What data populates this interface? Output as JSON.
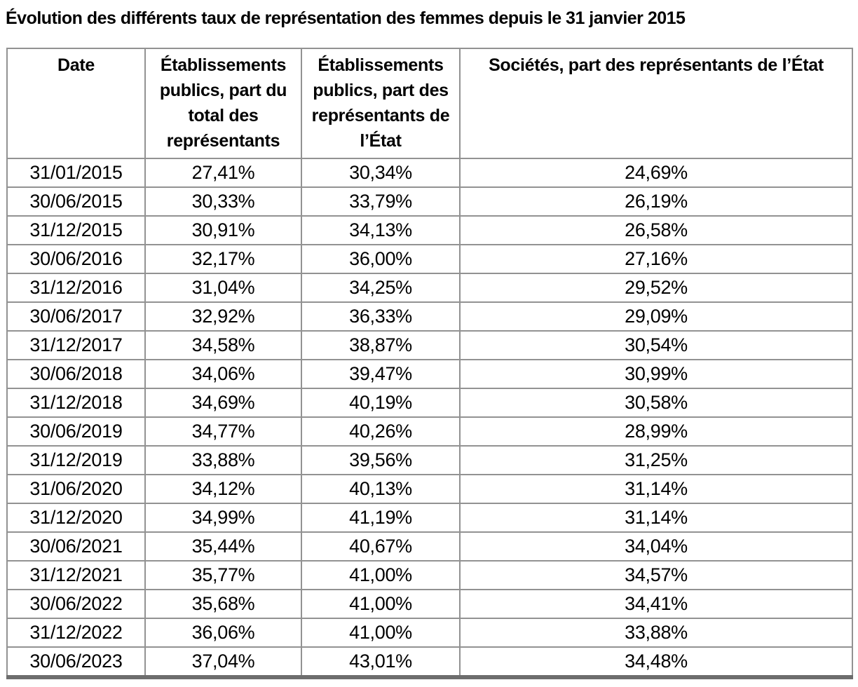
{
  "page": {
    "title": "Évolution des différents taux de représentation des femmes depuis le 31 janvier 2015"
  },
  "table": {
    "headers": [
      "Date",
      "Établissements\npublics, part du\ntotal des\nreprésentants",
      "Établissements\npublics, part des\nreprésentants de\nl’État",
      "Sociétés, part des représentants de l’État"
    ],
    "rows": [
      [
        "31/01/2015",
        "27,41%",
        "30,34%",
        "24,69%"
      ],
      [
        "30/06/2015",
        "30,33%",
        "33,79%",
        "26,19%"
      ],
      [
        "31/12/2015",
        "30,91%",
        "34,13%",
        "26,58%"
      ],
      [
        "30/06/2016",
        "32,17%",
        "36,00%",
        "27,16%"
      ],
      [
        "31/12/2016",
        "31,04%",
        "34,25%",
        "29,52%"
      ],
      [
        "30/06/2017",
        "32,92%",
        "36,33%",
        "29,09%"
      ],
      [
        "31/12/2017",
        "34,58%",
        "38,87%",
        "30,54%"
      ],
      [
        "30/06/2018",
        "34,06%",
        "39,47%",
        "30,99%"
      ],
      [
        "31/12/2018",
        "34,69%",
        "40,19%",
        "30,58%"
      ],
      [
        "30/06/2019",
        "34,77%",
        "40,26%",
        "28,99%"
      ],
      [
        "31/12/2019",
        "33,88%",
        "39,56%",
        "31,25%"
      ],
      [
        "31/06/2020",
        "34,12%",
        "40,13%",
        "31,14%"
      ],
      [
        "31/12/2020",
        "34,99%",
        "41,19%",
        "31,14%"
      ],
      [
        "30/06/2021",
        "35,44%",
        "40,67%",
        "34,04%"
      ],
      [
        "31/12/2021",
        "35,77%",
        "41,00%",
        "34,57%"
      ],
      [
        "30/06/2022",
        "35,68%",
        "41,00%",
        "34,41%"
      ],
      [
        "31/12/2022",
        "36,06%",
        "41,00%",
        "33,88%"
      ],
      [
        "30/06/2023",
        "37,04%",
        "43,01%",
        "34,48%"
      ]
    ]
  },
  "chart_data": {
    "type": "table",
    "title": "Évolution des différents taux de représentation des femmes depuis le 31 janvier 2015",
    "unit": "%",
    "categories": [
      "31/01/2015",
      "30/06/2015",
      "31/12/2015",
      "30/06/2016",
      "31/12/2016",
      "30/06/2017",
      "31/12/2017",
      "30/06/2018",
      "31/12/2018",
      "30/06/2019",
      "31/12/2019",
      "31/06/2020",
      "31/12/2020",
      "30/06/2021",
      "31/12/2021",
      "30/06/2022",
      "31/12/2022",
      "30/06/2023"
    ],
    "series": [
      {
        "name": "Établissements publics, part du total des représentants",
        "values": [
          27.41,
          30.33,
          30.91,
          32.17,
          31.04,
          32.92,
          34.58,
          34.06,
          34.69,
          34.77,
          33.88,
          34.12,
          34.99,
          35.44,
          35.77,
          35.68,
          36.06,
          37.04
        ]
      },
      {
        "name": "Établissements publics, part des représentants de l’État",
        "values": [
          30.34,
          33.79,
          34.13,
          36.0,
          34.25,
          36.33,
          38.87,
          39.47,
          40.19,
          40.26,
          39.56,
          40.13,
          41.19,
          40.67,
          41.0,
          41.0,
          41.0,
          43.01
        ]
      },
      {
        "name": "Sociétés, part des représentants de l’État",
        "values": [
          24.69,
          26.19,
          26.58,
          27.16,
          29.52,
          29.09,
          30.54,
          30.99,
          30.58,
          28.99,
          31.25,
          31.14,
          31.14,
          34.04,
          34.57,
          34.41,
          33.88,
          34.48
        ]
      }
    ]
  },
  "colors": {
    "background": "#ffffff",
    "text": "#000000",
    "grid_border": "#929292",
    "bottom_border": "#6d6d6d"
  }
}
